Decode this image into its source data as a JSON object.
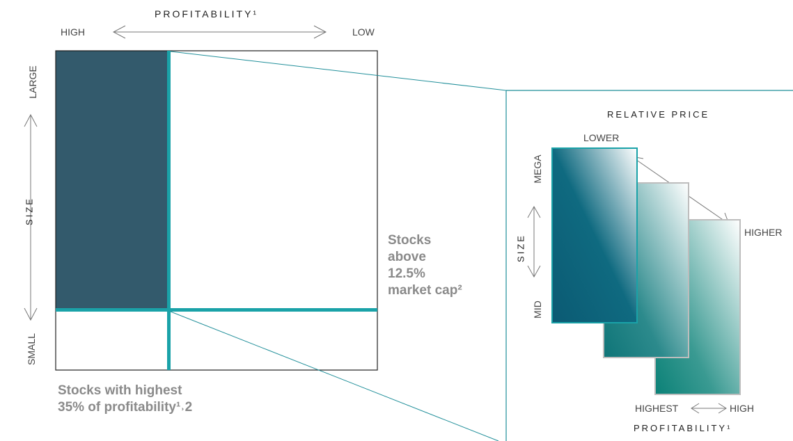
{
  "left_grid": {
    "top_axis_title": "PROFITABILITY¹",
    "top_left_label": "HIGH",
    "top_right_label": "LOW",
    "side_axis_title": "SIZE",
    "side_top_label": "LARGE",
    "side_bottom_label": "SMALL",
    "right_note_lines": [
      "Stocks",
      "above",
      "12.5%",
      "market cap²"
    ],
    "bottom_note_lines": [
      "Stocks with highest",
      "35% of profitability¹˒2"
    ]
  },
  "right_panel": {
    "title": "RELATIVE PRICE",
    "price_low_label": "LOWER",
    "price_high_label": "HIGHER",
    "size_title": "SIZE",
    "size_top_label": "MEGA",
    "size_bottom_label": "MID",
    "profit_left_label": "HIGHEST",
    "profit_right_label": "HIGH",
    "profit_title": "PROFITABILITY¹"
  },
  "colors": {
    "dark_fill": "#335a6c",
    "teal_line": "#1aa2a8",
    "teal_panel_border": "#1f8e99",
    "note_gray": "#8a8a8a"
  }
}
